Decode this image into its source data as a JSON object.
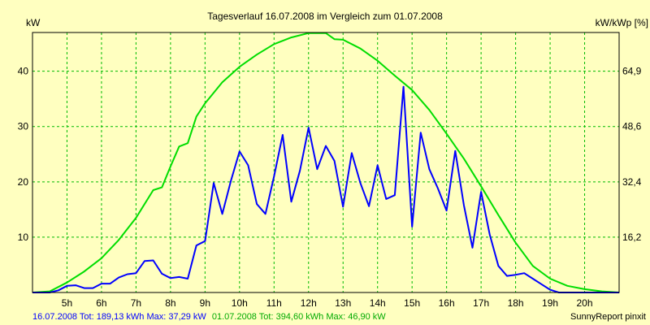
{
  "chart_data": {
    "type": "line",
    "title": "Tagesverlauf 16.07.2008 im Vergleich zum 01.07.2008",
    "ylabel_left": "kW",
    "ylabel_right": "kW/kWp [%]",
    "xlim": [
      4.0,
      21.0
    ],
    "ylim": [
      0,
      47
    ],
    "x_ticks": [
      5,
      6,
      7,
      8,
      9,
      10,
      11,
      12,
      13,
      14,
      15,
      16,
      17,
      18,
      19,
      20
    ],
    "x_tick_labels": [
      "5h",
      "6h",
      "7h",
      "8h",
      "9h",
      "10h",
      "11h",
      "12h",
      "13h",
      "14h",
      "15h",
      "16h",
      "17h",
      "18h",
      "19h",
      "20h"
    ],
    "y_ticks_left": [
      10,
      20,
      30,
      40
    ],
    "y_tick_labels_left": [
      "10",
      "20",
      "30",
      "40"
    ],
    "y_ticks_right_positions": [
      10,
      20,
      30,
      40
    ],
    "y_tick_labels_right": [
      "16,2",
      "32,4",
      "48,6",
      "64,9"
    ],
    "grid": true,
    "series": [
      {
        "color": "#0000ff",
        "x": [
          4.0,
          4.5,
          4.75,
          5.0,
          5.25,
          5.5,
          5.75,
          6.0,
          6.25,
          6.5,
          6.75,
          7.0,
          7.25,
          7.5,
          7.75,
          8.0,
          8.25,
          8.5,
          8.75,
          9.0,
          9.25,
          9.5,
          9.75,
          10.0,
          10.25,
          10.5,
          10.75,
          11.0,
          11.25,
          11.5,
          11.75,
          12.0,
          12.25,
          12.5,
          12.75,
          13.0,
          13.25,
          13.5,
          13.75,
          14.0,
          14.25,
          14.5,
          14.75,
          15.0,
          15.25,
          15.5,
          15.75,
          16.0,
          16.25,
          16.5,
          16.75,
          17.0,
          17.25,
          17.5,
          17.75,
          18.0,
          18.25,
          18.5,
          18.75,
          19.0,
          19.25,
          19.5,
          20.0,
          20.5,
          21.0
        ],
        "y": [
          0,
          0,
          0.4,
          1.2,
          1.3,
          0.8,
          0.8,
          1.6,
          1.6,
          2.7,
          3.3,
          3.5,
          5.7,
          5.8,
          3.4,
          2.6,
          2.8,
          2.5,
          8.5,
          9.3,
          19.8,
          14.2,
          20.2,
          25.5,
          23.0,
          16.0,
          14.2,
          21.0,
          28.5,
          16.4,
          22.0,
          29.8,
          22.3,
          26.5,
          23.8,
          15.5,
          25.2,
          19.8,
          15.6,
          23.0,
          16.9,
          17.6,
          37.2,
          11.9,
          28.9,
          22.3,
          18.8,
          14.8,
          25.6,
          15.8,
          8.1,
          18.2,
          10.5,
          4.8,
          3.0,
          3.2,
          3.5,
          2.5,
          1.5,
          0.5,
          0,
          0,
          0,
          0,
          0
        ]
      },
      {
        "color": "#00dd00",
        "x": [
          4.0,
          4.5,
          5.0,
          5.5,
          6.0,
          6.5,
          7.0,
          7.5,
          7.75,
          8.0,
          8.25,
          8.5,
          8.75,
          9.0,
          9.5,
          10.0,
          10.5,
          11.0,
          11.5,
          12.0,
          12.5,
          12.75,
          13.0,
          13.5,
          14.0,
          14.5,
          15.0,
          15.5,
          16.0,
          16.5,
          17.0,
          17.5,
          18.0,
          18.5,
          19.0,
          19.5,
          20.0,
          20.5,
          21.0
        ],
        "y": [
          0,
          0.2,
          1.8,
          3.8,
          6.2,
          9.5,
          13.5,
          18.5,
          19.0,
          22.8,
          26.4,
          27.0,
          31.8,
          34.2,
          38.0,
          40.8,
          43.0,
          44.9,
          46.1,
          46.9,
          46.9,
          45.8,
          45.7,
          44.1,
          41.9,
          39.2,
          36.6,
          33.0,
          28.7,
          24.2,
          19.2,
          14.0,
          9.0,
          4.8,
          2.5,
          1.2,
          0.6,
          0.2,
          0
        ]
      }
    ]
  },
  "footer": {
    "legend_blue": "16.07.2008 Tot: 189,13 kWh Max: 37,29 kW",
    "legend_green": "01.07.2008 Tot: 394,60 kWh Max: 46,90 kW",
    "credit": "SunnyReport pinxit"
  },
  "colors": {
    "background": "#ffffc0",
    "grid": "#00bb00",
    "blue": "#0000ff",
    "green": "#00dd00"
  }
}
